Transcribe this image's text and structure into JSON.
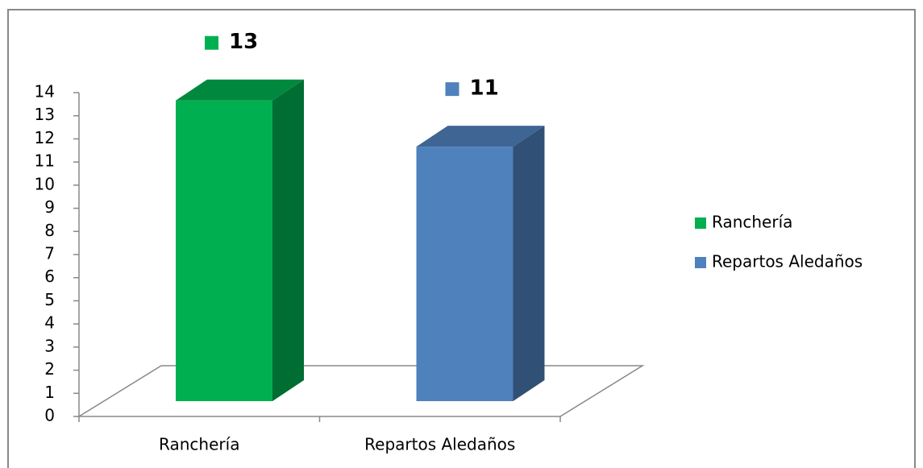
{
  "chart_data": {
    "type": "bar3d",
    "categories": [
      "Ranchería",
      "Repartos Aledaños"
    ],
    "series": [
      {
        "name": "Ranchería",
        "color": "#00b050",
        "values": [
          13,
          null
        ]
      },
      {
        "name": "Repartos Aledaños",
        "color": "#4f81bd",
        "values": [
          null,
          11
        ]
      }
    ],
    "ylim": [
      0,
      14
    ],
    "yticks": [
      0,
      1,
      2,
      3,
      4,
      5,
      6,
      7,
      8,
      9,
      10,
      11,
      12,
      13,
      14
    ],
    "legend": "right"
  }
}
